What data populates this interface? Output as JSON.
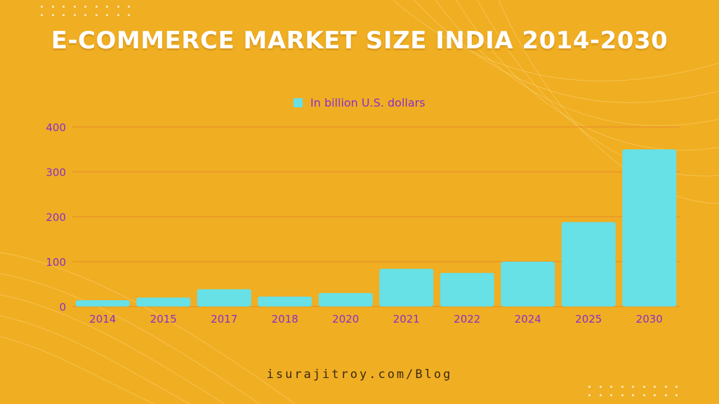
{
  "title": "E-COMMERCE MARKET SIZE INDIA 2014-2030",
  "footer": "isurajitroy.com/Blog",
  "colors": {
    "background": "#f0ae22",
    "bar": "#67e0e6",
    "gridline": "#e38b2a",
    "tick_text": "#8a2fc8",
    "title_text": "#ffffff"
  },
  "chart_data": {
    "type": "bar",
    "categories": [
      "2014",
      "2015",
      "2017",
      "2018",
      "2020",
      "2021",
      "2022",
      "2024",
      "2025",
      "2030"
    ],
    "series": [
      {
        "name": "In billion U.S. dollars",
        "values": [
          14,
          20,
          38.5,
          22,
          30,
          84,
          74.8,
          100,
          188,
          350
        ]
      }
    ],
    "ylim": [
      0,
      400
    ],
    "yticks": [
      0,
      100,
      200,
      300,
      400
    ],
    "legend_position": "top-center",
    "grid": true
  }
}
